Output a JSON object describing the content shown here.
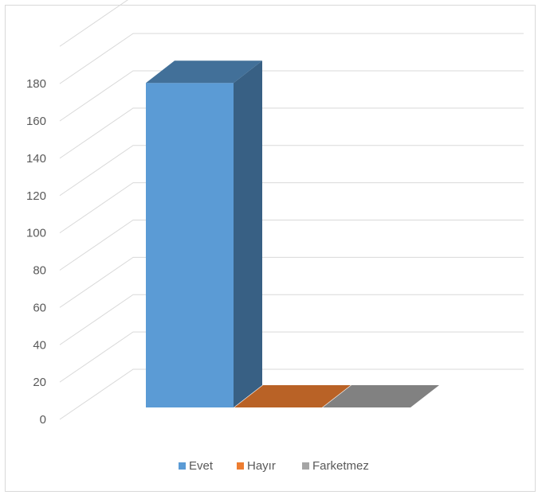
{
  "chart_data": {
    "type": "bar",
    "style": "3d-column",
    "categories": [
      "Evet",
      "Hayır",
      "Farketmez"
    ],
    "values": [
      174,
      0,
      0
    ],
    "colors": [
      "#5b9bd5",
      "#ed7d31",
      "#a5a5a5"
    ],
    "title": "",
    "xlabel": "",
    "ylabel": "",
    "ylim": [
      0,
      200
    ],
    "yticks": [
      "0",
      "20",
      "40",
      "60",
      "80",
      "100",
      "120",
      "140",
      "160",
      "180"
    ],
    "grid": true,
    "legend": {
      "position": "bottom",
      "entries": [
        "Evet",
        "Hayır",
        "Farketmez"
      ]
    }
  }
}
